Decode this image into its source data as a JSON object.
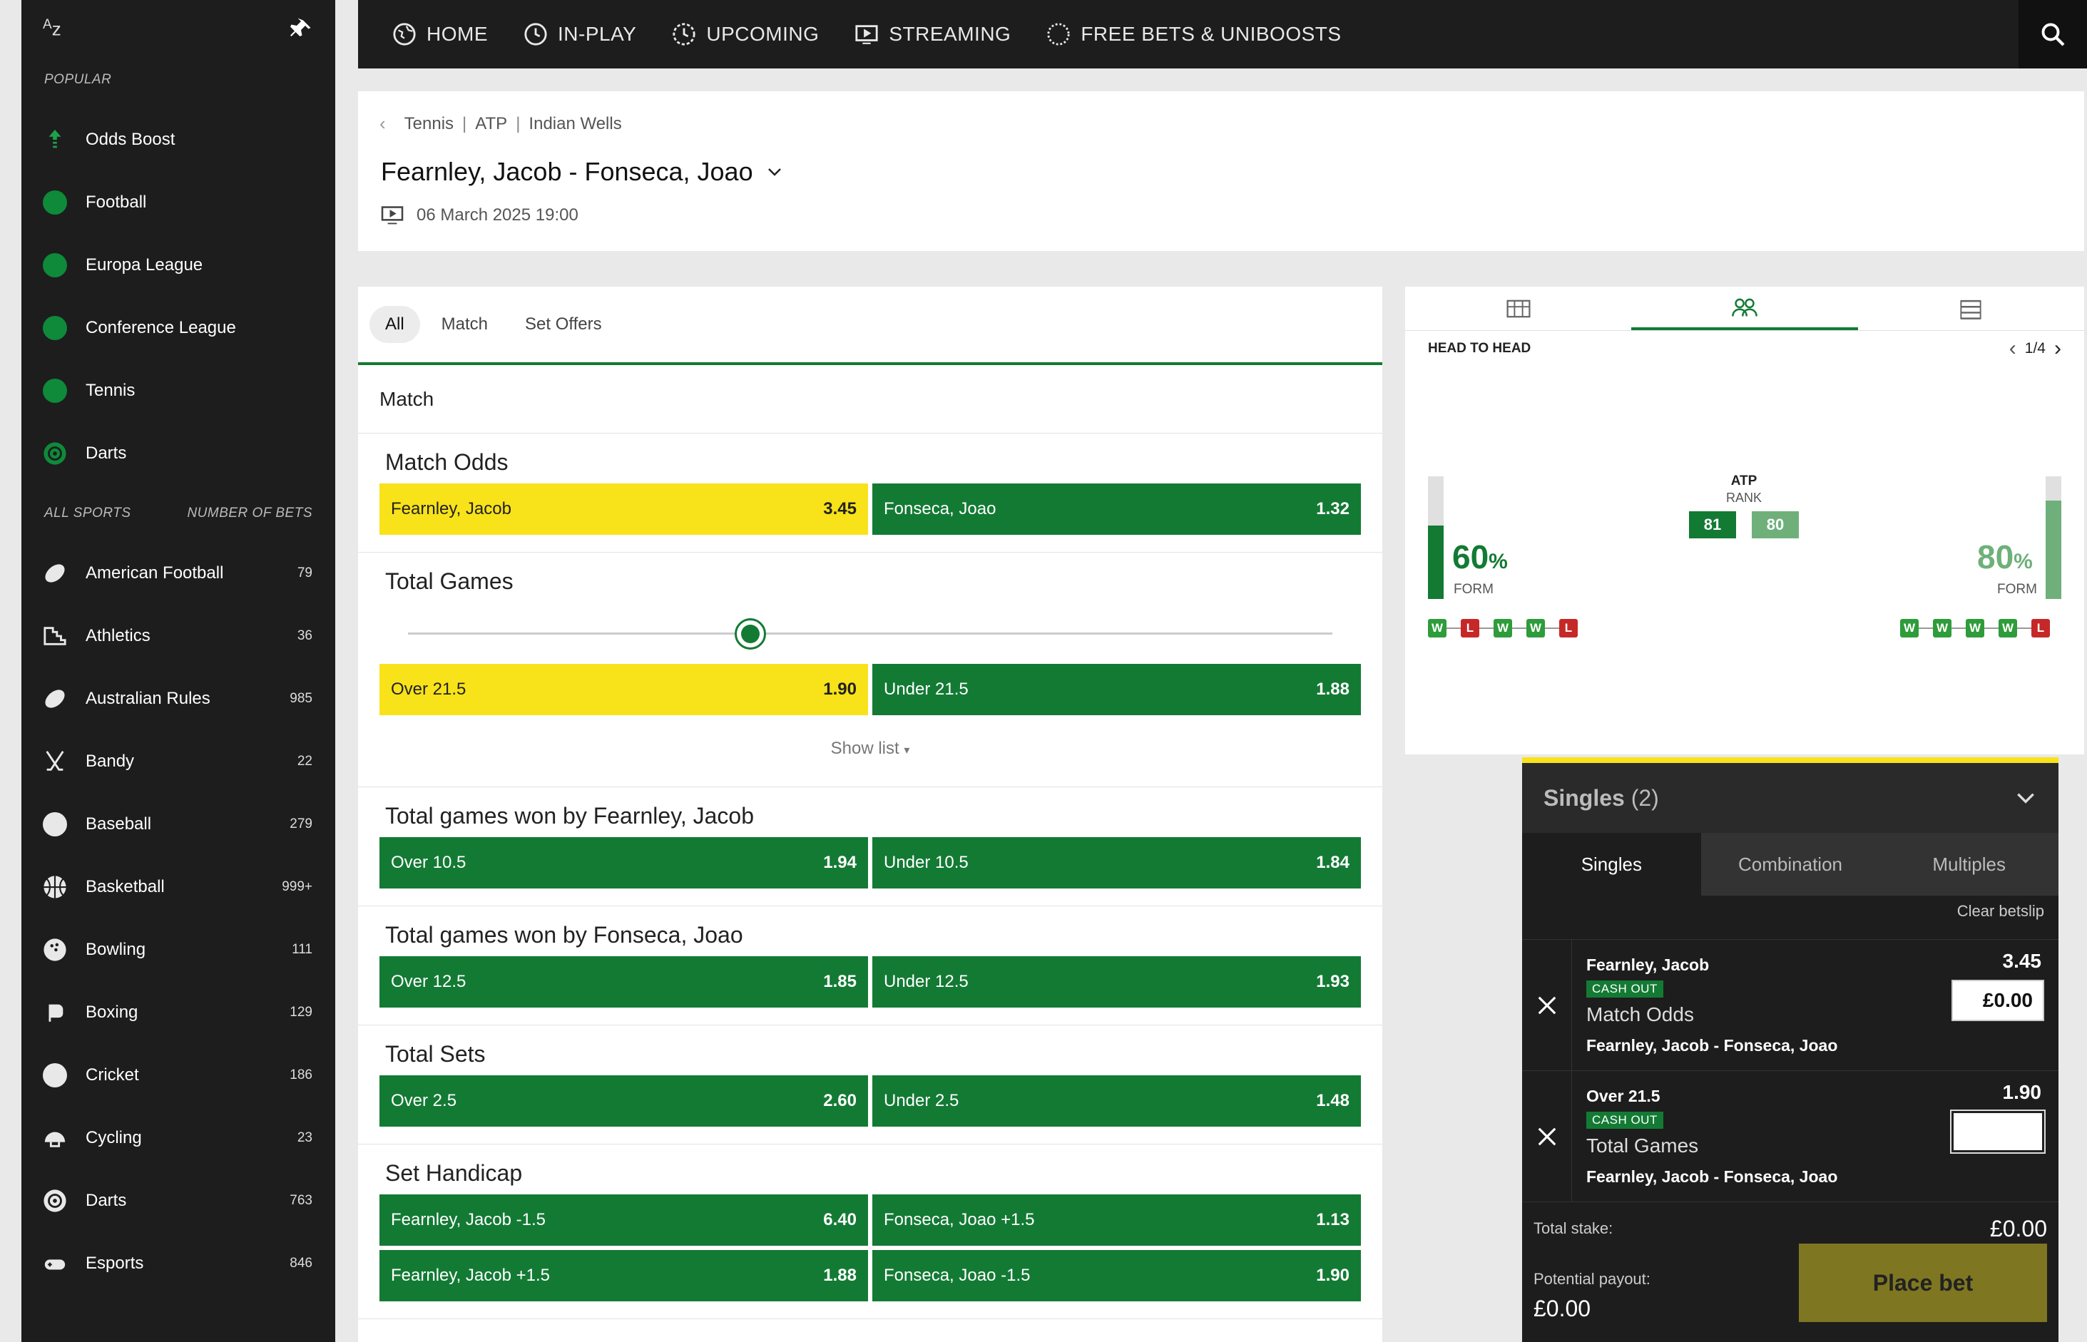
{
  "sidebar": {
    "popular_heading": "POPULAR",
    "popular": [
      {
        "label": "Odds Boost",
        "icon": "odds-boost-icon"
      },
      {
        "label": "Football",
        "icon": "football-icon"
      },
      {
        "label": "Europa League",
        "icon": "football-icon"
      },
      {
        "label": "Conference League",
        "icon": "football-icon"
      },
      {
        "label": "Tennis",
        "icon": "tennis-ball-icon"
      },
      {
        "label": "Darts",
        "icon": "darts-icon"
      }
    ],
    "all_sports_heading": "ALL SPORTS",
    "number_of_bets_heading": "NUMBER OF BETS",
    "sports": [
      {
        "label": "American Football",
        "count": "79"
      },
      {
        "label": "Athletics",
        "count": "36"
      },
      {
        "label": "Australian Rules",
        "count": "985"
      },
      {
        "label": "Bandy",
        "count": "22"
      },
      {
        "label": "Baseball",
        "count": "279"
      },
      {
        "label": "Basketball",
        "count": "999+"
      },
      {
        "label": "Bowling",
        "count": "111"
      },
      {
        "label": "Boxing",
        "count": "129"
      },
      {
        "label": "Cricket",
        "count": "186"
      },
      {
        "label": "Cycling",
        "count": "23"
      },
      {
        "label": "Darts",
        "count": "763"
      },
      {
        "label": "Esports",
        "count": "846"
      }
    ]
  },
  "nav": {
    "items": [
      "HOME",
      "IN-PLAY",
      "UPCOMING",
      "STREAMING",
      "FREE BETS & UNIBOOSTS"
    ]
  },
  "event": {
    "breadcrumbs": [
      "Tennis",
      "ATP",
      "Indian Wells"
    ],
    "title": "Fearnley, Jacob - Fonseca, Joao",
    "datetime": "06 March 2025 19:00"
  },
  "markets": {
    "tabs": [
      "All",
      "Match",
      "Set Offers"
    ],
    "section": "Match",
    "match_odds": {
      "title": "Match Odds",
      "outcomes": [
        {
          "label": "Fearnley, Jacob",
          "price": "3.45"
        },
        {
          "label": "Fonseca, Joao",
          "price": "1.32"
        }
      ]
    },
    "total_games": {
      "title": "Total Games",
      "slider_fraction": 0.37,
      "outcomes": [
        {
          "label": "Over  21.5",
          "price": "1.90"
        },
        {
          "label": "Under  21.5",
          "price": "1.88"
        }
      ],
      "show_list": "Show list"
    },
    "games_fearnley": {
      "title": "Total games won by Fearnley, Jacob",
      "outcomes": [
        {
          "label": "Over  10.5",
          "price": "1.94"
        },
        {
          "label": "Under  10.5",
          "price": "1.84"
        }
      ]
    },
    "games_fonseca": {
      "title": "Total games won by Fonseca, Joao",
      "outcomes": [
        {
          "label": "Over  12.5",
          "price": "1.85"
        },
        {
          "label": "Under  12.5",
          "price": "1.93"
        }
      ]
    },
    "total_sets": {
      "title": "Total Sets",
      "outcomes": [
        {
          "label": "Over  2.5",
          "price": "2.60"
        },
        {
          "label": "Under  2.5",
          "price": "1.48"
        }
      ]
    },
    "set_handicap": {
      "title": "Set Handicap",
      "outcomes": [
        {
          "label": "Fearnley, Jacob  -1.5",
          "price": "6.40"
        },
        {
          "label": "Fonseca, Joao  +1.5",
          "price": "1.13"
        },
        {
          "label": "Fearnley, Jacob  +1.5",
          "price": "1.88"
        },
        {
          "label": "Fonseca, Joao  -1.5",
          "price": "1.90"
        }
      ]
    }
  },
  "stats": {
    "heading": "HEAD TO HEAD",
    "pager": "1/4",
    "rank_title": "ATP",
    "rank_sub": "RANK",
    "home": {
      "rank": "81",
      "form_pct": "60",
      "form_label": "FORM",
      "form_fraction": 0.6,
      "results": [
        "W",
        "L",
        "W",
        "W",
        "L"
      ]
    },
    "away": {
      "rank": "80",
      "form_pct": "80",
      "form_label": "FORM",
      "form_fraction": 0.8,
      "results": [
        "W",
        "W",
        "W",
        "W",
        "L"
      ]
    },
    "pct_sign": "%",
    "colors": {
      "home": "#137a34",
      "away": "#6fb07a"
    }
  },
  "betslip": {
    "title": "Singles",
    "count": "(2)",
    "tabs": [
      "Singles",
      "Combination",
      "Multiples"
    ],
    "clear": "Clear betslip",
    "bets": [
      {
        "selection": "Fearnley, Jacob",
        "cashout": "CASH OUT",
        "market": "Match Odds",
        "event": "Fearnley, Jacob - Fonseca, Joao",
        "price": "3.45",
        "stake": "£0.00"
      },
      {
        "selection": "Over 21.5",
        "cashout": "CASH OUT",
        "market": "Total Games",
        "event": "Fearnley, Jacob - Fonseca, Joao",
        "price": "1.90",
        "stake": ""
      }
    ],
    "total_stake_label": "Total stake:",
    "total_stake": "£0.00",
    "payout_label": "Potential payout:",
    "payout": "£0.00",
    "place_bet": "Place bet"
  }
}
